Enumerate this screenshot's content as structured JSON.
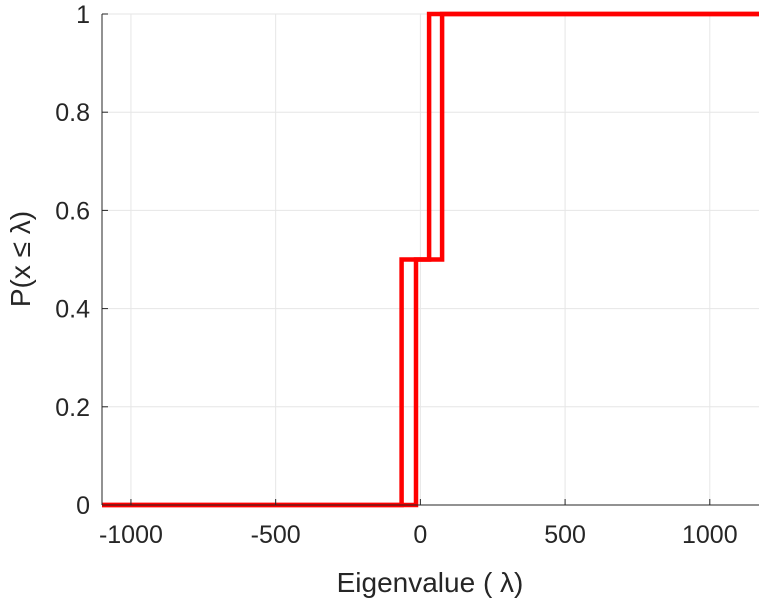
{
  "chart_data": {
    "type": "line",
    "title": "",
    "xlabel": "Eigenvalue (   λ)",
    "ylabel": "P(x ≤ λ)",
    "xlim": [
      -1100,
      1170
    ],
    "ylim": [
      0,
      1
    ],
    "x_ticks": [
      -1000,
      -500,
      0,
      500,
      1000
    ],
    "x_tick_labels": [
      "-1000",
      "-500",
      "0",
      "500",
      "1000"
    ],
    "y_ticks": [
      0,
      0.2,
      0.4,
      0.6,
      0.8,
      1
    ],
    "y_tick_labels": [
      "0",
      "0.2",
      "0.4",
      "0.6",
      "0.8",
      "1"
    ],
    "grid": true,
    "series": [
      {
        "color": "#ff0000",
        "x": [
          -1100,
          -65,
          -65,
          30,
          30,
          1170
        ],
        "y": [
          0,
          0,
          0.5,
          0.5,
          1,
          1
        ]
      },
      {
        "color": "#ff0000",
        "x": [
          -1100,
          -15,
          -15,
          75,
          75,
          1170
        ],
        "y": [
          0,
          0,
          0.5,
          0.5,
          1,
          1
        ]
      }
    ]
  }
}
